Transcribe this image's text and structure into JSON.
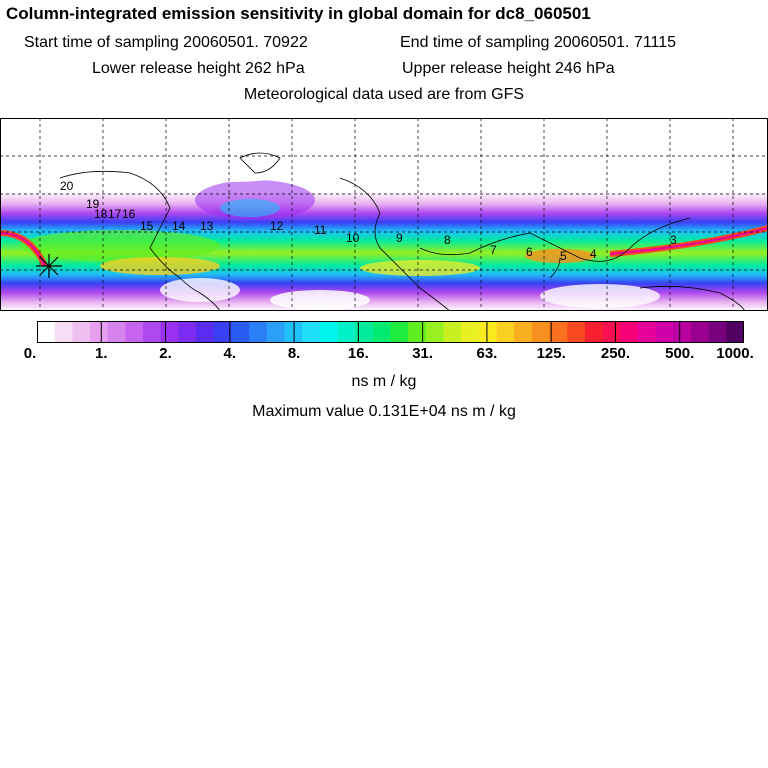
{
  "header": {
    "title": "Column-integrated emission sensitivity in global domain for dc8_060501",
    "start_time": "Start time of sampling 20060501. 70922",
    "end_time": "End time of sampling 20060501. 71115",
    "lower_release": "Lower release height  262 hPa",
    "upper_release": "Upper release height  246 hPa",
    "met_data": "Meteorological data used are from GFS"
  },
  "map": {
    "track_labels": [
      "20",
      "19",
      "18",
      "17",
      "16",
      "15",
      "14",
      "13",
      "12",
      "11",
      "10",
      "9",
      "8",
      "7",
      "6",
      "5",
      "4",
      "3"
    ],
    "release_marker": "release-point-star"
  },
  "colorbar": {
    "labels": [
      "0.",
      "1.",
      "2.",
      "4.",
      "8.",
      "16.",
      "31.",
      "63.",
      "125.",
      "250.",
      "500.",
      "1000."
    ],
    "colors": [
      "#ffffff",
      "#f7def7",
      "#efc0ef",
      "#e7a0ef",
      "#d884ef",
      "#c864ef",
      "#b048ef",
      "#9a30f0",
      "#7a2cf2",
      "#5a2cf2",
      "#3a40f4",
      "#2a5cf4",
      "#2a7ef6",
      "#2aa0f8",
      "#20c0f8",
      "#20e0f8",
      "#00f4ee",
      "#00f0c8",
      "#00ec9c",
      "#00ea70",
      "#20ec40",
      "#60ee20",
      "#98f020",
      "#c8f020",
      "#e8f020",
      "#f8ec20",
      "#f8d020",
      "#f8b020",
      "#f89020",
      "#f87020",
      "#f84820",
      "#f82030",
      "#f81050",
      "#f80078",
      "#e8009a",
      "#d000a8",
      "#b800a0",
      "#9a0090",
      "#78007c",
      "#500060"
    ]
  },
  "units": "ns m / kg",
  "max_value": "Maximum value  0.131E+04 ns m / kg"
}
